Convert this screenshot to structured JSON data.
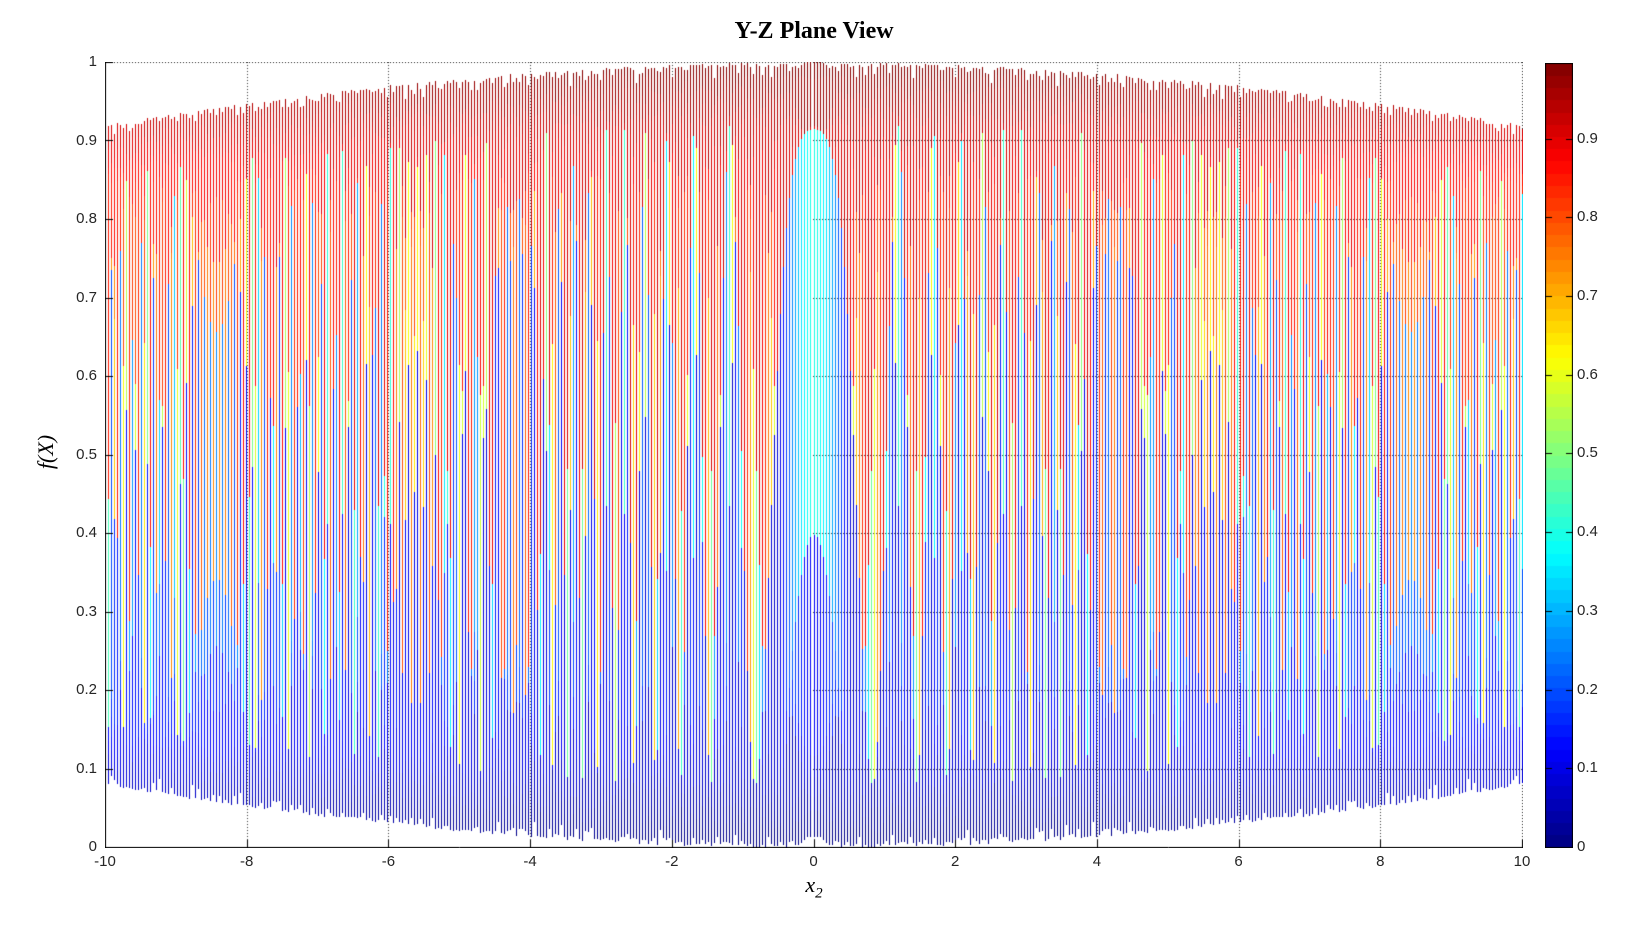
{
  "chart_data": {
    "type": "line",
    "title": "Y-Z Plane View",
    "xlabel": "x_2",
    "xlabel_base": "x",
    "xlabel_subscript": "2",
    "ylabel": "f(X)",
    "xlim": [
      -10,
      10
    ],
    "ylim": [
      0,
      1
    ],
    "x_ticks": [
      -10,
      -8,
      -6,
      -4,
      -2,
      0,
      2,
      4,
      6,
      8,
      10
    ],
    "x_tick_labels": [
      "-10",
      "-8",
      "-6",
      "-4",
      "-2",
      "0",
      "2",
      "4",
      "6",
      "8",
      "10"
    ],
    "y_ticks": [
      0,
      0.1,
      0.2,
      0.3,
      0.4,
      0.5,
      0.6,
      0.7,
      0.8,
      0.9,
      1
    ],
    "y_tick_labels": [
      "0",
      "0.1",
      "0.2",
      "0.3",
      "0.4",
      "0.5",
      "0.6",
      "0.7",
      "0.8",
      "0.9",
      "1"
    ],
    "grid": "dotted",
    "grid_color": "#3c3c3c",
    "axis_color": "#000000",
    "background_color": "#ffffff",
    "colormap": "jet",
    "colormap_levels": 64,
    "view": "Y-Z plane (projection along x1) of a 3D oscillatory mesh surface",
    "surface": {
      "function": "f(X) = 0.5 + 0.5*exp(-(x1^2+x2^2)/580)*cos(4.4*(x1^2+x2^2))",
      "offset": 0.5,
      "amplitude": 0.5,
      "gauss_divisor": 580,
      "chirp_rate": 4.4,
      "phase": 0,
      "x1_range": [
        -10,
        10
      ],
      "x2_range": [
        -10,
        10
      ],
      "x1_samples": 161,
      "x2_samples": 473,
      "f_range": [
        0,
        1
      ]
    },
    "envelope": {
      "f_span_at_x2_edges": [
        0.08,
        0.92
      ],
      "f_span_at_center": [
        0,
        1
      ]
    },
    "colorbar": {
      "location": "right",
      "min": 0,
      "max": 0.996,
      "ticks": [
        0,
        0.1,
        0.2,
        0.3,
        0.4,
        0.5,
        0.6,
        0.7,
        0.8,
        0.9
      ],
      "tick_labels": [
        "0",
        "0.1",
        "0.2",
        "0.3",
        "0.4",
        "0.5",
        "0.6",
        "0.7",
        "0.8",
        "0.9"
      ]
    }
  }
}
